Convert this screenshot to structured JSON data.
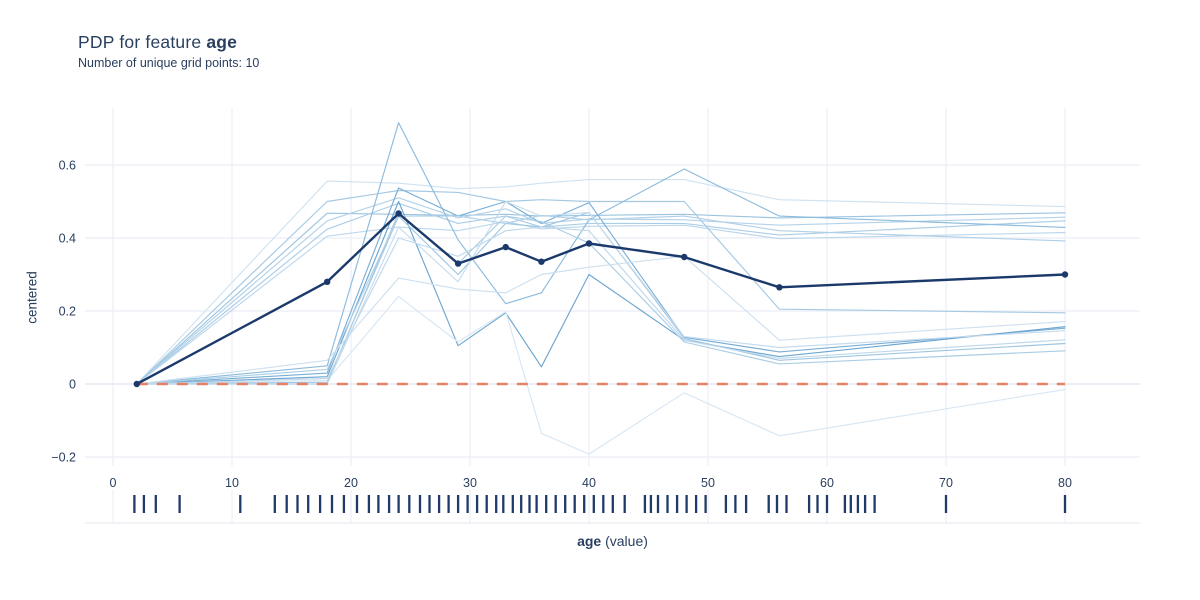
{
  "header": {
    "title_prefix": "PDP for feature ",
    "title_feature": "age",
    "subtitle": "Number of unique grid points: 10"
  },
  "axes": {
    "y_label": "centered",
    "x_label_feature": "age",
    "x_label_suffix": " (value)"
  },
  "chart_data": {
    "type": "line",
    "title": "PDP for feature age",
    "subtitle": "Number of unique grid points: 10",
    "xlabel": "age (value)",
    "ylabel": "centered",
    "grid": true,
    "legend": "none",
    "xlim": [
      -2.4,
      86.3
    ],
    "ylim": [
      -0.225,
      0.756
    ],
    "x_ticks": [
      {
        "value": 0,
        "label": "0"
      },
      {
        "value": 10,
        "label": "10"
      },
      {
        "value": 20,
        "label": "20"
      },
      {
        "value": 30,
        "label": "30"
      },
      {
        "value": 40,
        "label": "40"
      },
      {
        "value": 50,
        "label": "50"
      },
      {
        "value": 60,
        "label": "60"
      },
      {
        "value": 70,
        "label": "70"
      },
      {
        "value": 80,
        "label": "80"
      }
    ],
    "y_ticks": [
      {
        "value": -0.2,
        "label": "−0.2"
      },
      {
        "value": 0,
        "label": "0"
      },
      {
        "value": 0.2,
        "label": "0.2"
      },
      {
        "value": 0.4,
        "label": "0.4"
      },
      {
        "value": 0.6,
        "label": "0.6"
      }
    ],
    "grid_points": [
      2,
      18,
      24,
      29,
      33,
      36,
      40,
      48,
      56,
      80
    ],
    "pdp_series": {
      "name": "pdp-mean",
      "color": "#1b3a6b",
      "values": [
        0.0,
        0.28,
        0.467,
        0.33,
        0.375,
        0.335,
        0.385,
        0.348,
        0.265,
        0.3
      ]
    },
    "zero_line": {
      "y": 0,
      "color": "#e78165",
      "style": "dashed"
    },
    "ice_series": [
      {
        "color": "#cfe2f1",
        "values": [
          0,
          0.556,
          0.55,
          0.535,
          0.54,
          0.55,
          0.56,
          0.56,
          0.505,
          0.486
        ]
      },
      {
        "color": "#9cc4e0",
        "values": [
          0,
          0.468,
          0.465,
          0.462,
          0.465,
          0.46,
          0.462,
          0.465,
          0.455,
          0.469
        ]
      },
      {
        "color": "#b4d2e9",
        "values": [
          0,
          0.447,
          0.51,
          0.455,
          0.48,
          0.44,
          0.452,
          0.45,
          0.435,
          0.457
        ]
      },
      {
        "color": "#accde6",
        "values": [
          0,
          0.424,
          0.495,
          0.44,
          0.46,
          0.43,
          0.44,
          0.44,
          0.408,
          0.447
        ]
      },
      {
        "color": "#bdd7ec",
        "values": [
          0,
          0.405,
          0.43,
          0.42,
          0.445,
          0.425,
          0.432,
          0.435,
          0.398,
          0.415
        ]
      },
      {
        "color": "#a5c9e3",
        "values": [
          0,
          0.5,
          0.53,
          0.525,
          0.5,
          0.505,
          0.5,
          0.5,
          0.205,
          0.195
        ]
      },
      {
        "color": "#8cbbdc",
        "values": [
          0,
          0.05,
          0.716,
          0.395,
          0.22,
          0.25,
          0.45,
          0.589,
          0.46,
          0.429
        ]
      },
      {
        "color": "#79aed6",
        "values": [
          0,
          0.03,
          0.537,
          0.46,
          0.5,
          0.44,
          0.497,
          0.128,
          0.088,
          0.153
        ]
      },
      {
        "color": "#6da6d0",
        "values": [
          0,
          0.02,
          0.5,
          0.105,
          0.195,
          0.047,
          0.3,
          0.12,
          0.075,
          0.157
        ]
      },
      {
        "color": "#d8e7f4",
        "values": [
          0,
          0.01,
          0.24,
          0.115,
          0.198,
          -0.135,
          -0.192,
          -0.024,
          -0.142,
          -0.015
        ]
      },
      {
        "color": "#9fc6e1",
        "values": [
          0,
          0.005,
          0.46,
          0.3,
          0.44,
          0.43,
          0.47,
          0.125,
          0.065,
          0.111
        ]
      },
      {
        "color": "#aacde5",
        "values": [
          0,
          0.0,
          0.47,
          0.33,
          0.46,
          0.445,
          0.386,
          0.115,
          0.055,
          0.091
        ]
      },
      {
        "color": "#c6dcee",
        "values": [
          0,
          0.0,
          0.43,
          0.28,
          0.5,
          0.46,
          0.47,
          0.13,
          0.1,
          0.146
        ]
      },
      {
        "color": "#b0d0e7",
        "values": [
          0,
          0.04,
          0.46,
          0.46,
          0.44,
          0.462,
          0.45,
          0.46,
          0.42,
          0.392
        ]
      },
      {
        "color": "#cde0f0",
        "values": [
          0,
          0.065,
          0.29,
          0.26,
          0.25,
          0.3,
          0.32,
          0.35,
          0.12,
          0.171
        ]
      },
      {
        "color": "#bfd8ec",
        "values": [
          0,
          0.015,
          0.4,
          0.35,
          0.42,
          0.43,
          0.42,
          0.12,
          0.07,
          0.121
        ]
      }
    ],
    "rug_values": [
      1.8,
      2.6,
      3.6,
      5.6,
      10.7,
      13.6,
      14.6,
      15.5,
      16.4,
      17.4,
      18.4,
      19.4,
      20.5,
      21.5,
      22.3,
      23.2,
      24,
      24.9,
      25.8,
      26.6,
      27.4,
      28.2,
      29,
      29.8,
      30.6,
      31.4,
      32.2,
      32.8,
      33.6,
      34.3,
      35,
      35.6,
      36.4,
      37.2,
      38,
      38.8,
      39.6,
      40.4,
      41.2,
      42,
      43,
      44.7,
      45.2,
      45.8,
      46.6,
      47.4,
      48.2,
      49,
      49.8,
      51.5,
      52.3,
      53.2,
      55.1,
      55.8,
      56.6,
      58.5,
      59.2,
      60,
      61.5,
      62,
      62.6,
      63.2,
      64,
      70,
      80
    ],
    "colors": {
      "pdp_line": "#1b3a6b",
      "zero_dash": "#e78165",
      "rug_tick": "#1f3a66",
      "text": "#2a3f5f",
      "grid_vertical": "#eef1f8",
      "grid_horizontal": "#edf0f7",
      "zero_grid": "#e6e9f2",
      "rug_border": "#e9ebf2"
    }
  }
}
